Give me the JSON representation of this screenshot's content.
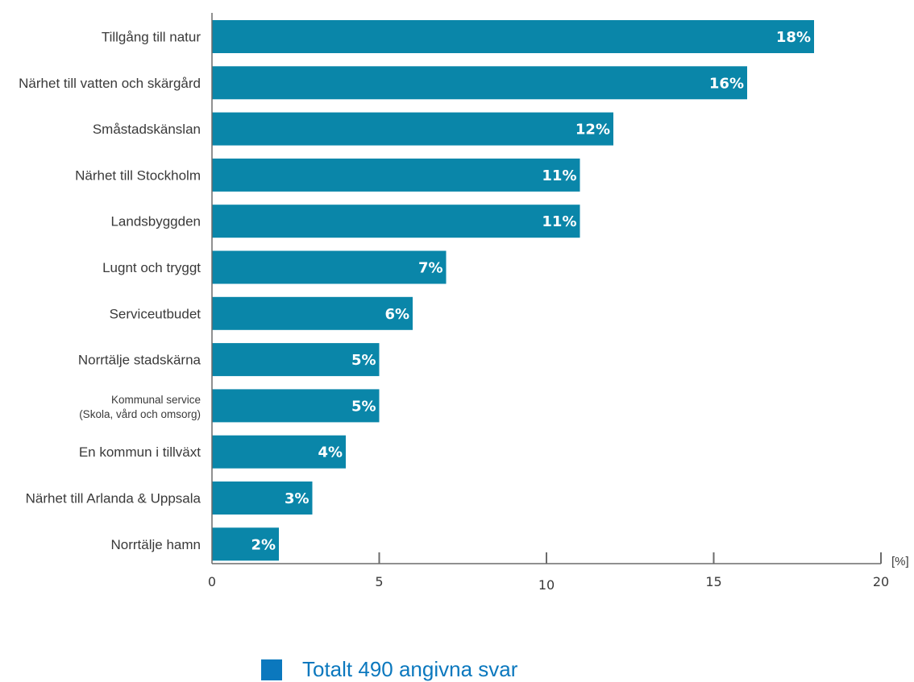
{
  "chart_data": {
    "type": "bar",
    "orientation": "horizontal",
    "categories": [
      "Tillgång till natur",
      "Närhet till vatten och skärgård",
      "Småstadskänslan",
      "Närhet till Stockholm",
      "Landsbyggden",
      "Lugnt och tryggt",
      "Serviceutbudet",
      "Norrtälje stadskärna",
      "Kommunal service\n(Skola, vård och omsorg)",
      "En kommun i tillväxt",
      "Närhet till Arlanda & Uppsala",
      "Norrtälje hamn"
    ],
    "values": [
      18,
      16,
      12,
      11,
      11,
      7,
      6,
      5,
      5,
      4,
      3,
      2
    ],
    "value_labels": [
      "18%",
      "16%",
      "12%",
      "11%",
      "11%",
      "7%",
      "6%",
      "5%",
      "5%",
      "4%",
      "3%",
      "2%"
    ],
    "x_ticks": [
      "0",
      "5",
      "10",
      "15",
      "20"
    ],
    "xlim": [
      0,
      20
    ],
    "unit_label": "[%]",
    "grid": false,
    "legend": {
      "placement": "bottom",
      "entries": [
        {
          "label": "Totalt 490 angivna svar",
          "color": "#0b78be"
        }
      ]
    },
    "bar_color": "#0a86a9"
  }
}
